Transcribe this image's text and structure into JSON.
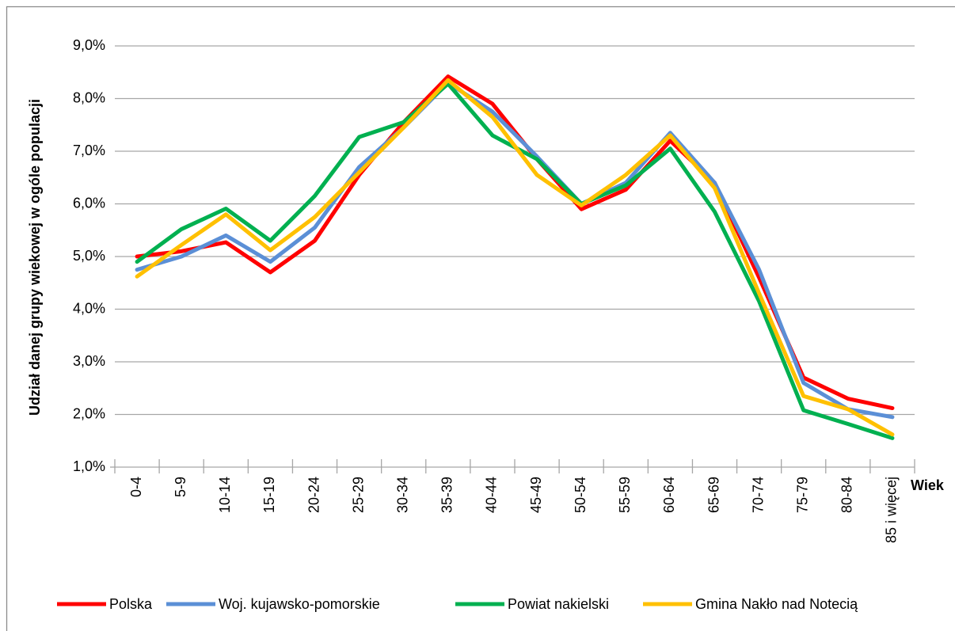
{
  "chart_data": {
    "type": "line",
    "y_label": "Udział danej grupy wiekowej w ogóle populacji",
    "x_label": "Wiek",
    "categories": [
      "0-4",
      "5-9",
      "10-14",
      "15-19",
      "20-24",
      "25-29",
      "30-34",
      "35-39",
      "40-44",
      "45-49",
      "50-54",
      "55-59",
      "60-64",
      "65-69",
      "70-74",
      "75-79",
      "80-84",
      "85 i więcej"
    ],
    "series": [
      {
        "name": "Polska",
        "color": "#ff0000",
        "values": [
          5.0,
          5.1,
          5.27,
          4.7,
          5.3,
          6.55,
          7.55,
          8.42,
          7.9,
          6.85,
          5.9,
          6.27,
          7.2,
          6.4,
          4.6,
          2.7,
          2.3,
          2.12
        ]
      },
      {
        "name": "Woj. kujawsko-pomorskie",
        "color": "#5b8fd6",
        "values": [
          4.75,
          5.0,
          5.4,
          4.9,
          5.55,
          6.7,
          7.45,
          8.3,
          7.75,
          6.9,
          6.0,
          6.4,
          7.35,
          6.4,
          4.75,
          2.6,
          2.1,
          1.95
        ]
      },
      {
        "name": "Powiat nakielski",
        "color": "#00b050",
        "values": [
          4.9,
          5.52,
          5.91,
          5.3,
          6.15,
          7.27,
          7.55,
          8.28,
          7.3,
          6.85,
          6.0,
          6.35,
          7.05,
          5.85,
          4.15,
          2.08,
          1.82,
          1.55
        ]
      },
      {
        "name": "Gmina Nakło nad Notecią",
        "color": "#ffc000",
        "values": [
          4.62,
          5.22,
          5.8,
          5.12,
          5.75,
          6.6,
          7.45,
          8.35,
          7.65,
          6.55,
          5.97,
          6.55,
          7.3,
          6.3,
          4.3,
          2.35,
          2.1,
          1.62
        ]
      }
    ],
    "ylim": [
      1.0,
      9.0
    ],
    "yticks": [
      {
        "value": 1.0,
        "label": "1,0%"
      },
      {
        "value": 2.0,
        "label": "2,0%"
      },
      {
        "value": 3.0,
        "label": "3,0%"
      },
      {
        "value": 4.0,
        "label": "4,0%"
      },
      {
        "value": 5.0,
        "label": "5,0%"
      },
      {
        "value": 6.0,
        "label": "6,0%"
      },
      {
        "value": 7.0,
        "label": "7,0%"
      },
      {
        "value": 8.0,
        "label": "8,0%"
      },
      {
        "value": 9.0,
        "label": "9,0%"
      }
    ],
    "grid": true,
    "legend": "bottom"
  }
}
